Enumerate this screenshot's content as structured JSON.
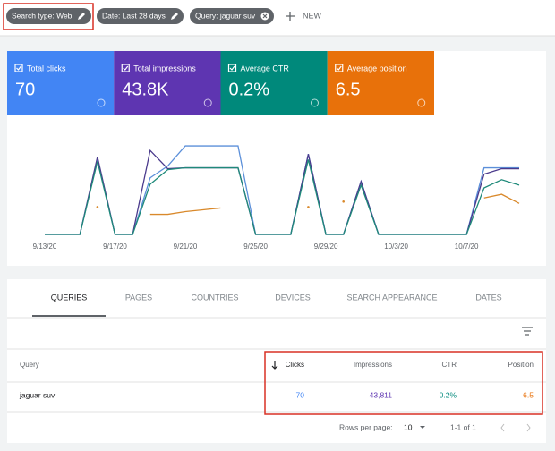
{
  "filters": [
    {
      "label": "Search type: Web"
    },
    {
      "label": "Date: Last 28 days"
    },
    {
      "label": "Query: jaguar suv"
    }
  ],
  "new_button": "NEW",
  "metrics": [
    {
      "label": "Total clicks",
      "value": "70",
      "color": "#4285f4"
    },
    {
      "label": "Total impressions",
      "value": "43.8K",
      "color": "#5e35b1"
    },
    {
      "label": "Average CTR",
      "value": "0.2%",
      "color": "#00897b"
    },
    {
      "label": "Average position",
      "value": "6.5",
      "color": "#e8710a"
    }
  ],
  "chart_data": {
    "type": "line",
    "categories": [
      "9/13/20",
      null,
      null,
      null,
      "9/17/20",
      null,
      null,
      null,
      "9/21/20",
      null,
      null,
      null,
      "9/25/20",
      null,
      null,
      null,
      "9/29/20",
      null,
      null,
      null,
      "10/3/20",
      null,
      null,
      null,
      "10/7/20",
      null,
      null,
      null
    ],
    "ylim": [
      0,
      100
    ],
    "series": [
      {
        "color": "#5b8fd9",
        "values": [
          0,
          0,
          0,
          82,
          0,
          0,
          62,
          75,
          97,
          97,
          97,
          97,
          0,
          0,
          0,
          88,
          0,
          0,
          58,
          0,
          0,
          0,
          0,
          0,
          0,
          73,
          73,
          73
        ]
      },
      {
        "color": "#4a3a8c",
        "values": [
          0,
          0,
          0,
          85,
          0,
          0,
          92,
          72,
          73,
          73,
          73,
          73,
          0,
          0,
          0,
          88,
          0,
          0,
          58,
          0,
          0,
          0,
          0,
          0,
          0,
          66,
          72,
          72
        ]
      },
      {
        "color": "#1f8a7a",
        "values": [
          0,
          0,
          0,
          80,
          0,
          0,
          55,
          71,
          73,
          73,
          73,
          73,
          0,
          0,
          0,
          82,
          0,
          0,
          54,
          0,
          0,
          0,
          0,
          0,
          0,
          51,
          60,
          54
        ]
      },
      {
        "color": "#d9892b",
        "values": [
          null,
          null,
          null,
          30,
          null,
          null,
          22,
          22,
          25,
          27,
          29,
          null,
          null,
          null,
          null,
          30,
          null,
          36,
          null,
          null,
          null,
          null,
          null,
          null,
          null,
          40,
          44,
          34
        ]
      }
    ]
  },
  "tabs": [
    "QUERIES",
    "PAGES",
    "COUNTRIES",
    "DEVICES",
    "SEARCH APPEARANCE",
    "DATES"
  ],
  "table": {
    "columns": [
      "Query",
      "Clicks",
      "Impressions",
      "CTR",
      "Position"
    ],
    "rows": [
      [
        "jaguar suv",
        "70",
        "43,811",
        "0.2%",
        "6.5"
      ]
    ]
  },
  "footer": {
    "rows_per_page_label": "Rows per page:",
    "rows_per_page": "10",
    "range": "1-1 of 1"
  }
}
